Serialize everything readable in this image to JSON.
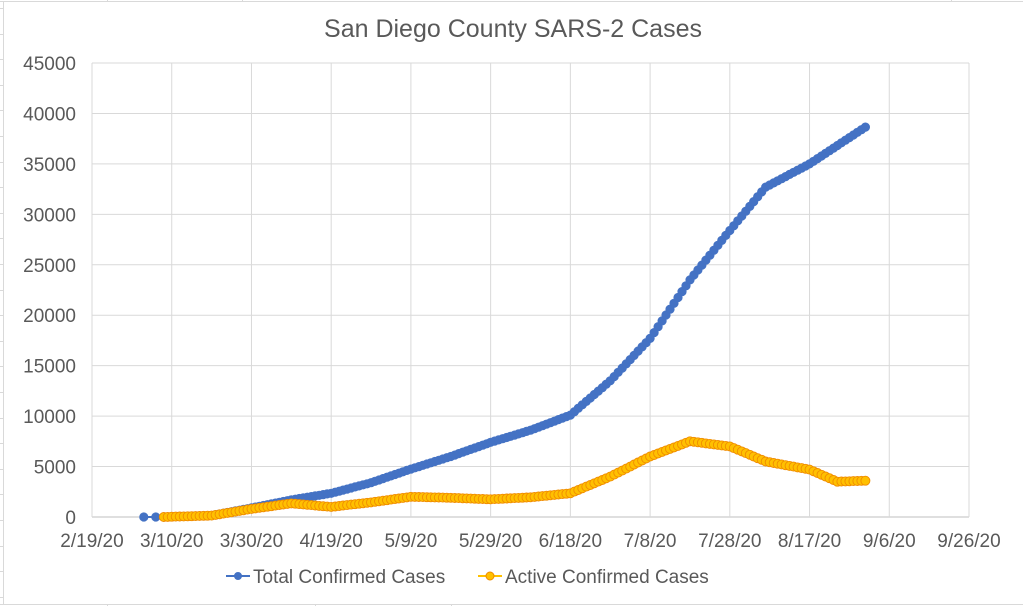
{
  "chart_data": {
    "type": "line",
    "title": "San Diego County SARS-2 Cases",
    "xlabel": "",
    "ylabel": "",
    "ylim": [
      0,
      45000
    ],
    "y_ticks": [
      "0",
      "5000",
      "10000",
      "15000",
      "20000",
      "25000",
      "30000",
      "35000",
      "40000",
      "45000"
    ],
    "y_tick_values": [
      0,
      5000,
      10000,
      15000,
      20000,
      25000,
      30000,
      35000,
      40000,
      45000
    ],
    "x_range_days": [
      0,
      220
    ],
    "x_ticks": [
      "2/19/20",
      "3/10/20",
      "3/30/20",
      "4/19/20",
      "5/9/20",
      "5/29/20",
      "6/18/20",
      "7/8/20",
      "7/28/20",
      "8/17/20",
      "9/6/20",
      "9/26/20"
    ],
    "x_tick_days": [
      0,
      20,
      40,
      60,
      80,
      100,
      120,
      140,
      160,
      180,
      200,
      220
    ],
    "x_unit": "days since 2/19/20",
    "grid": true,
    "legend_position": "bottom",
    "series": [
      {
        "name": "Total Confirmed Cases",
        "color": "#4472C4",
        "marker_edge": "#4472C4",
        "early_days": [
          13,
          16
        ],
        "early_values": [
          1,
          2
        ],
        "start_day": 18,
        "values": [
          3,
          15,
          28,
          40,
          52,
          64,
          77,
          89,
          101,
          113,
          126,
          138,
          150,
          225,
          300,
          375,
          450,
          525,
          600,
          675,
          750,
          825,
          900,
          980,
          1060,
          1140,
          1220,
          1300,
          1380,
          1460,
          1540,
          1620,
          1700,
          1765,
          1830,
          1895,
          1960,
          2025,
          2090,
          2155,
          2220,
          2285,
          2350,
          2455,
          2560,
          2665,
          2770,
          2875,
          2980,
          3085,
          3190,
          3295,
          3400,
          3535,
          3670,
          3805,
          3940,
          4075,
          4210,
          4345,
          4480,
          4615,
          4750,
          4875,
          5000,
          5125,
          5250,
          5375,
          5500,
          5625,
          5750,
          5875,
          6000,
          6140,
          6280,
          6420,
          6560,
          6700,
          6840,
          6980,
          7120,
          7260,
          7400,
          7520,
          7640,
          7760,
          7880,
          8000,
          8120,
          8240,
          8360,
          8480,
          8600,
          8750,
          8900,
          9050,
          9200,
          9350,
          9500,
          9650,
          9800,
          9950,
          10100,
          10440,
          10780,
          11120,
          11460,
          11800,
          12140,
          12480,
          12820,
          13160,
          13500,
          13920,
          14340,
          14760,
          15180,
          15600,
          16020,
          16440,
          16860,
          17280,
          17700,
          18280,
          18860,
          19440,
          20020,
          20600,
          21180,
          21760,
          22340,
          22920,
          23500,
          23990,
          24480,
          24970,
          25460,
          25950,
          26440,
          26930,
          27420,
          27910,
          28400,
          28878,
          29356,
          29833,
          30311,
          30789,
          31267,
          31744,
          32222,
          32700,
          32909,
          33118,
          33327,
          33536,
          33745,
          33955,
          34164,
          34373,
          34582,
          34791,
          35000,
          35261,
          35521,
          35782,
          36043,
          36304,
          36564,
          36825,
          37086,
          37346,
          37607,
          37868,
          38129,
          38389,
          38650
        ]
      },
      {
        "name": "Active Confirmed Cases",
        "color": "#FFC000",
        "marker_edge": "#F08C00",
        "early_days": [],
        "early_values": [],
        "start_day": 18,
        "values": [
          3,
          14,
          26,
          37,
          49,
          60,
          72,
          83,
          94,
          106,
          117,
          129,
          140,
          206,
          272,
          338,
          404,
          470,
          536,
          602,
          668,
          734,
          800,
          855,
          910,
          965,
          1020,
          1075,
          1130,
          1185,
          1240,
          1295,
          1350,
          1315,
          1280,
          1245,
          1210,
          1175,
          1140,
          1105,
          1070,
          1035,
          1000,
          1045,
          1090,
          1135,
          1180,
          1225,
          1270,
          1315,
          1360,
          1405,
          1450,
          1505,
          1560,
          1615,
          1670,
          1725,
          1780,
          1835,
          1890,
          1945,
          2000,
          1990,
          1980,
          1970,
          1960,
          1950,
          1940,
          1930,
          1920,
          1910,
          1900,
          1885,
          1870,
          1855,
          1840,
          1825,
          1810,
          1795,
          1780,
          1765,
          1750,
          1770,
          1790,
          1810,
          1830,
          1850,
          1870,
          1890,
          1910,
          1930,
          1950,
          1990,
          2030,
          2070,
          2110,
          2150,
          2190,
          2230,
          2270,
          2310,
          2350,
          2515,
          2680,
          2845,
          3010,
          3175,
          3340,
          3505,
          3670,
          3835,
          4000,
          4200,
          4400,
          4600,
          4800,
          5000,
          5200,
          5400,
          5600,
          5800,
          6000,
          6150,
          6300,
          6450,
          6600,
          6750,
          6900,
          7050,
          7200,
          7350,
          7500,
          7450,
          7400,
          7350,
          7300,
          7250,
          7200,
          7150,
          7100,
          7050,
          7000,
          6833,
          6667,
          6500,
          6333,
          6167,
          6000,
          5833,
          5667,
          5500,
          5427,
          5355,
          5282,
          5209,
          5136,
          5064,
          4991,
          4918,
          4845,
          4773,
          4700,
          4529,
          4357,
          4186,
          4014,
          3843,
          3671,
          3500,
          3514,
          3529,
          3543,
          3557,
          3571,
          3586,
          3600
        ]
      }
    ]
  }
}
